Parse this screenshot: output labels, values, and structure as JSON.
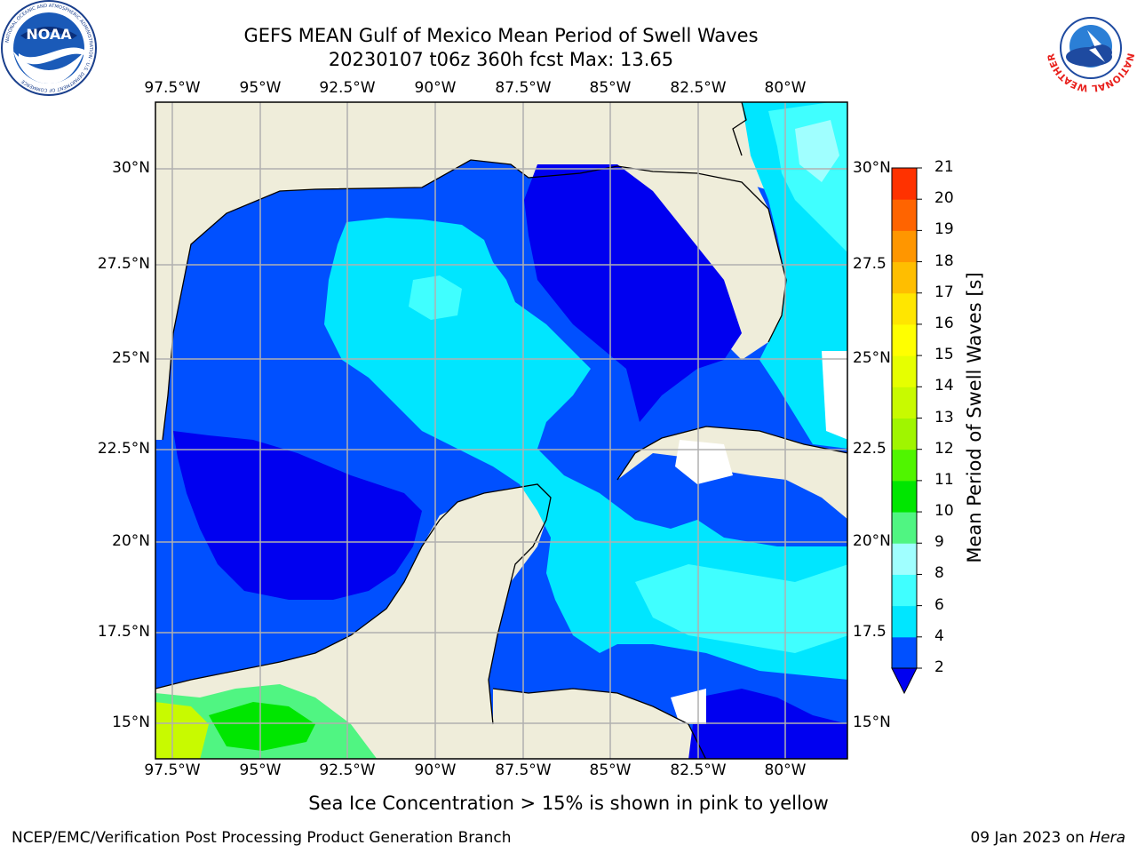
{
  "title": {
    "line1": "GEFS MEAN Gulf of Mexico Mean Period of Swell Waves",
    "line2": "20230107 t06z 360h fcst   Max: 13.65"
  },
  "map": {
    "lon_labels": [
      "97.5°W",
      "95°W",
      "92.5°W",
      "90°W",
      "87.5°W",
      "85°W",
      "82.5°W",
      "80°W"
    ],
    "lat_labels_left": [
      "30°N",
      "27.5°N",
      "25°N",
      "22.5°N",
      "20°N",
      "17.5°N",
      "15°N"
    ],
    "lat_labels_right": [
      "30°N",
      "27.5",
      "25°N",
      "22.5",
      "20°N",
      "17.5",
      "15°N"
    ],
    "colors": {
      "land": "#efedda",
      "grid": "#b0b0b0",
      "coast": "#000000",
      "no_data": "#ffffff"
    }
  },
  "colorbar": {
    "label": "Mean Period of Swell Waves [s]",
    "ticks": [
      "2",
      "4",
      "6",
      "8",
      "9",
      "10",
      "11",
      "12",
      "13",
      "14",
      "15",
      "16",
      "17",
      "18",
      "19",
      "20",
      "21"
    ],
    "colors": [
      "#0050ff",
      "#00e6ff",
      "#40ffff",
      "#a0ffff",
      "#50f582",
      "#00e600",
      "#50f500",
      "#a0f500",
      "#c8fa00",
      "#e6ff00",
      "#ffff00",
      "#ffe600",
      "#ffbe00",
      "#ff9600",
      "#ff6400",
      "#ff3200"
    ],
    "extend_color": "#0000f0"
  },
  "subtitle": "Sea Ice Concentration > 15% is shown in pink to yellow",
  "footer": {
    "left": "NCEP/EMC/Verification Post Processing Product Generation Branch",
    "right_date": "09 Jan 2023 on ",
    "right_host": "Hera"
  },
  "logos": {
    "noaa_text": "NOAA",
    "noaa_ring": "NATIONAL OCEANIC AND ATMOSPHERIC ADMINISTRATION · U.S. DEPARTMENT OF COMMERCE",
    "nws_ring": "NATIONAL WEATHER SERVICE"
  }
}
